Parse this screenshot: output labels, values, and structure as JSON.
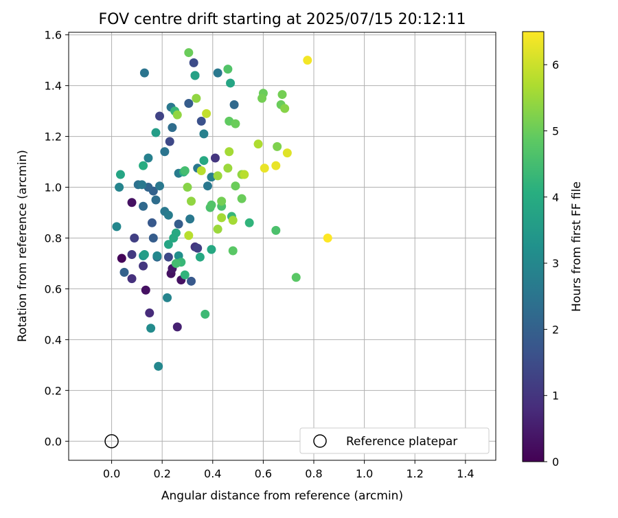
{
  "chart_data": {
    "type": "scatter",
    "title": "FOV centre drift starting at 2025/07/15 20:12:11",
    "xlabel": "Angular distance from reference (arcmin)",
    "ylabel": "Rotation from reference (arcmin)",
    "xlim": [
      -0.17,
      1.52
    ],
    "ylim": [
      -0.075,
      1.61
    ],
    "xticks": [
      "0.0",
      "0.2",
      "0.4",
      "0.6",
      "0.8",
      "1.0",
      "1.2",
      "1.4"
    ],
    "yticks": [
      "0.0",
      "0.2",
      "0.4",
      "0.6",
      "0.8",
      "1.0",
      "1.2",
      "1.4",
      "1.6"
    ],
    "grid": true,
    "colorbar": {
      "label": "Hours from first FF file",
      "range": [
        0,
        6.5
      ],
      "ticks": [
        "0",
        "1",
        "2",
        "3",
        "4",
        "5",
        "6"
      ],
      "colormap": "viridis"
    },
    "legend": {
      "position": "bottom-right",
      "entries": [
        "Reference platepar"
      ]
    },
    "reference_point": {
      "x": 0.0,
      "y": 0.0
    },
    "points": [
      {
        "x": 0.04,
        "y": 0.72,
        "h": 0.1
      },
      {
        "x": 0.08,
        "y": 0.94,
        "h": 0.3
      },
      {
        "x": 0.135,
        "y": 0.595,
        "h": 0.3
      },
      {
        "x": 0.15,
        "y": 0.505,
        "h": 0.8
      },
      {
        "x": 0.235,
        "y": 0.66,
        "h": 0.3
      },
      {
        "x": 0.24,
        "y": 0.68,
        "h": 0.4
      },
      {
        "x": 0.275,
        "y": 0.635,
        "h": 0.3
      },
      {
        "x": 0.26,
        "y": 0.45,
        "h": 0.6
      },
      {
        "x": 0.08,
        "y": 0.64,
        "h": 0.9
      },
      {
        "x": 0.08,
        "y": 0.735,
        "h": 1.1
      },
      {
        "x": 0.09,
        "y": 0.8,
        "h": 1.2
      },
      {
        "x": 0.125,
        "y": 0.69,
        "h": 1.0
      },
      {
        "x": 0.33,
        "y": 0.765,
        "h": 1.0
      },
      {
        "x": 0.34,
        "y": 0.76,
        "h": 1.2
      },
      {
        "x": 0.225,
        "y": 0.725,
        "h": 1.4
      },
      {
        "x": 0.41,
        "y": 1.115,
        "h": 1.0
      },
      {
        "x": 0.19,
        "y": 1.28,
        "h": 1.3
      },
      {
        "x": 0.23,
        "y": 1.18,
        "h": 1.4
      },
      {
        "x": 0.325,
        "y": 1.49,
        "h": 1.5
      },
      {
        "x": 0.355,
        "y": 1.26,
        "h": 1.6
      },
      {
        "x": 0.05,
        "y": 0.665,
        "h": 2.0
      },
      {
        "x": 0.16,
        "y": 0.86,
        "h": 1.8
      },
      {
        "x": 0.165,
        "y": 0.8,
        "h": 1.9
      },
      {
        "x": 0.265,
        "y": 0.855,
        "h": 1.9
      },
      {
        "x": 0.315,
        "y": 0.63,
        "h": 1.8
      },
      {
        "x": 0.305,
        "y": 1.33,
        "h": 1.9
      },
      {
        "x": 0.485,
        "y": 1.325,
        "h": 2.2
      },
      {
        "x": 0.165,
        "y": 0.985,
        "h": 2.0
      },
      {
        "x": 0.145,
        "y": 1.0,
        "h": 2.1
      },
      {
        "x": 0.175,
        "y": 0.95,
        "h": 2.3
      },
      {
        "x": 0.125,
        "y": 0.925,
        "h": 2.2
      },
      {
        "x": 0.18,
        "y": 0.725,
        "h": 2.1
      },
      {
        "x": 0.24,
        "y": 1.235,
        "h": 2.3
      },
      {
        "x": 0.235,
        "y": 1.315,
        "h": 2.6
      },
      {
        "x": 0.13,
        "y": 1.45,
        "h": 2.5
      },
      {
        "x": 0.42,
        "y": 1.45,
        "h": 2.6
      },
      {
        "x": 0.105,
        "y": 1.01,
        "h": 2.4
      },
      {
        "x": 0.12,
        "y": 1.01,
        "h": 2.6
      },
      {
        "x": 0.19,
        "y": 1.005,
        "h": 2.6
      },
      {
        "x": 0.21,
        "y": 1.14,
        "h": 2.5
      },
      {
        "x": 0.21,
        "y": 0.905,
        "h": 2.6
      },
      {
        "x": 0.225,
        "y": 0.89,
        "h": 2.7
      },
      {
        "x": 0.31,
        "y": 0.875,
        "h": 2.6
      },
      {
        "x": 0.33,
        "y": 1.44,
        "h": 2.8
      },
      {
        "x": 0.365,
        "y": 1.21,
        "h": 2.8
      },
      {
        "x": 0.145,
        "y": 1.115,
        "h": 2.8
      },
      {
        "x": 0.265,
        "y": 1.055,
        "h": 2.7
      },
      {
        "x": 0.34,
        "y": 1.075,
        "h": 2.6
      },
      {
        "x": 0.38,
        "y": 1.005,
        "h": 2.6
      },
      {
        "x": 0.395,
        "y": 1.04,
        "h": 2.8
      },
      {
        "x": 0.03,
        "y": 1.0,
        "h": 2.9
      },
      {
        "x": 0.02,
        "y": 0.845,
        "h": 3.0
      },
      {
        "x": 0.22,
        "y": 0.565,
        "h": 2.9
      },
      {
        "x": 0.155,
        "y": 0.445,
        "h": 3.1
      },
      {
        "x": 0.185,
        "y": 0.295,
        "h": 3.0
      },
      {
        "x": 0.18,
        "y": 0.73,
        "h": 3.0
      },
      {
        "x": 0.265,
        "y": 0.73,
        "h": 3.2
      },
      {
        "x": 0.125,
        "y": 0.73,
        "h": 3.3
      },
      {
        "x": 0.13,
        "y": 0.735,
        "h": 3.6
      },
      {
        "x": 0.225,
        "y": 0.775,
        "h": 3.8
      },
      {
        "x": 0.245,
        "y": 0.8,
        "h": 3.9
      },
      {
        "x": 0.255,
        "y": 0.82,
        "h": 3.9
      },
      {
        "x": 0.395,
        "y": 0.755,
        "h": 3.9
      },
      {
        "x": 0.175,
        "y": 1.215,
        "h": 3.6
      },
      {
        "x": 0.035,
        "y": 1.05,
        "h": 3.8
      },
      {
        "x": 0.125,
        "y": 1.085,
        "h": 4.0
      },
      {
        "x": 0.35,
        "y": 0.725,
        "h": 3.9
      },
      {
        "x": 0.365,
        "y": 1.105,
        "h": 3.9
      },
      {
        "x": 0.285,
        "y": 1.06,
        "h": 4.1
      },
      {
        "x": 0.33,
        "y": 1.44,
        "h": 3.7
      },
      {
        "x": 0.47,
        "y": 1.41,
        "h": 3.8
      },
      {
        "x": 0.29,
        "y": 0.655,
        "h": 4.2
      },
      {
        "x": 0.275,
        "y": 0.705,
        "h": 4.3
      },
      {
        "x": 0.255,
        "y": 0.7,
        "h": 4.5
      },
      {
        "x": 0.25,
        "y": 1.3,
        "h": 4.3
      },
      {
        "x": 0.37,
        "y": 0.5,
        "h": 4.4
      },
      {
        "x": 0.545,
        "y": 0.86,
        "h": 4.2
      },
      {
        "x": 0.475,
        "y": 0.885,
        "h": 4.3
      },
      {
        "x": 0.29,
        "y": 1.065,
        "h": 4.5
      },
      {
        "x": 0.435,
        "y": 0.925,
        "h": 4.6
      },
      {
        "x": 0.39,
        "y": 0.92,
        "h": 4.6
      },
      {
        "x": 0.395,
        "y": 0.93,
        "h": 4.7
      },
      {
        "x": 0.65,
        "y": 0.83,
        "h": 4.6
      },
      {
        "x": 0.73,
        "y": 0.645,
        "h": 4.8
      },
      {
        "x": 0.48,
        "y": 0.75,
        "h": 4.8
      },
      {
        "x": 0.46,
        "y": 1.465,
        "h": 4.7
      },
      {
        "x": 0.465,
        "y": 1.26,
        "h": 4.9
      },
      {
        "x": 0.49,
        "y": 1.25,
        "h": 5.0
      },
      {
        "x": 0.49,
        "y": 1.005,
        "h": 5.0
      },
      {
        "x": 0.515,
        "y": 0.955,
        "h": 5.0
      },
      {
        "x": 0.305,
        "y": 1.53,
        "h": 5.0
      },
      {
        "x": 0.6,
        "y": 1.37,
        "h": 5.0
      },
      {
        "x": 0.595,
        "y": 1.35,
        "h": 5.1
      },
      {
        "x": 0.67,
        "y": 1.325,
        "h": 5.0
      },
      {
        "x": 0.675,
        "y": 1.365,
        "h": 5.1
      },
      {
        "x": 0.655,
        "y": 1.16,
        "h": 5.2
      },
      {
        "x": 0.685,
        "y": 1.31,
        "h": 5.3
      },
      {
        "x": 0.435,
        "y": 0.945,
        "h": 5.1
      },
      {
        "x": 0.515,
        "y": 1.05,
        "h": 5.4
      },
      {
        "x": 0.3,
        "y": 1.0,
        "h": 5.3
      },
      {
        "x": 0.335,
        "y": 1.35,
        "h": 5.4
      },
      {
        "x": 0.26,
        "y": 1.285,
        "h": 5.4
      },
      {
        "x": 0.315,
        "y": 0.945,
        "h": 5.4
      },
      {
        "x": 0.42,
        "y": 1.045,
        "h": 5.5
      },
      {
        "x": 0.46,
        "y": 1.075,
        "h": 5.5
      },
      {
        "x": 0.465,
        "y": 1.14,
        "h": 5.6
      },
      {
        "x": 0.42,
        "y": 0.835,
        "h": 5.5
      },
      {
        "x": 0.435,
        "y": 0.88,
        "h": 5.6
      },
      {
        "x": 0.48,
        "y": 0.87,
        "h": 5.6
      },
      {
        "x": 0.58,
        "y": 1.17,
        "h": 5.7
      },
      {
        "x": 0.525,
        "y": 1.05,
        "h": 5.8
      },
      {
        "x": 0.305,
        "y": 0.81,
        "h": 5.8
      },
      {
        "x": 0.355,
        "y": 1.065,
        "h": 5.8
      },
      {
        "x": 0.375,
        "y": 1.29,
        "h": 5.9
      },
      {
        "x": 0.605,
        "y": 1.075,
        "h": 6.3
      },
      {
        "x": 0.65,
        "y": 1.085,
        "h": 6.3
      },
      {
        "x": 0.695,
        "y": 1.135,
        "h": 6.2
      },
      {
        "x": 0.775,
        "y": 1.5,
        "h": 6.4
      },
      {
        "x": 0.855,
        "y": 0.8,
        "h": 6.5
      }
    ]
  }
}
